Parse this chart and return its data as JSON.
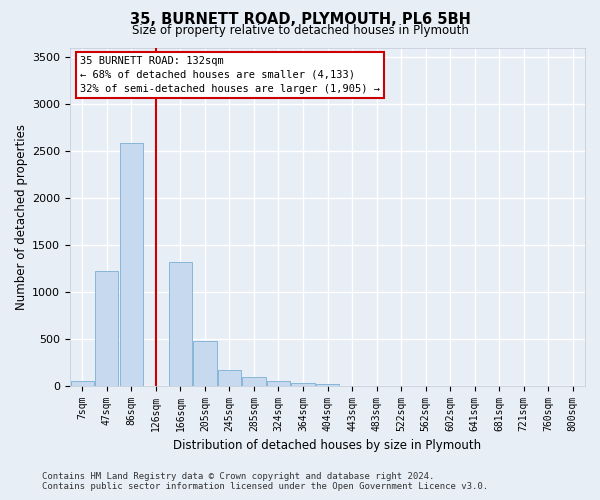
{
  "title": "35, BURNETT ROAD, PLYMOUTH, PL6 5BH",
  "subtitle": "Size of property relative to detached houses in Plymouth",
  "xlabel": "Distribution of detached houses by size in Plymouth",
  "ylabel": "Number of detached properties",
  "bar_color": "#c6d9ee",
  "bar_edge_color": "#7bafd4",
  "background_color": "#e8eef6",
  "grid_color": "#ffffff",
  "categories": [
    "7sqm",
    "47sqm",
    "86sqm",
    "126sqm",
    "166sqm",
    "205sqm",
    "245sqm",
    "285sqm",
    "324sqm",
    "364sqm",
    "404sqm",
    "443sqm",
    "483sqm",
    "522sqm",
    "562sqm",
    "602sqm",
    "641sqm",
    "681sqm",
    "721sqm",
    "760sqm",
    "800sqm"
  ],
  "values": [
    50,
    1220,
    2580,
    0,
    1320,
    480,
    175,
    100,
    55,
    30,
    20,
    5,
    5,
    3,
    2,
    1,
    1,
    1,
    1,
    1,
    1
  ],
  "vline_color": "#cc0000",
  "vline_x": 3.0,
  "annotation_text": "35 BURNETT ROAD: 132sqm\n← 68% of detached houses are smaller (4,133)\n32% of semi-detached houses are larger (1,905) →",
  "annotation_box_facecolor": "#ffffff",
  "annotation_box_edgecolor": "#cc0000",
  "ylim_max": 3600,
  "yticks": [
    0,
    500,
    1000,
    1500,
    2000,
    2500,
    3000,
    3500
  ],
  "footnote_line1": "Contains HM Land Registry data © Crown copyright and database right 2024.",
  "footnote_line2": "Contains public sector information licensed under the Open Government Licence v3.0.",
  "figwidth": 6.0,
  "figheight": 5.0,
  "dpi": 100
}
